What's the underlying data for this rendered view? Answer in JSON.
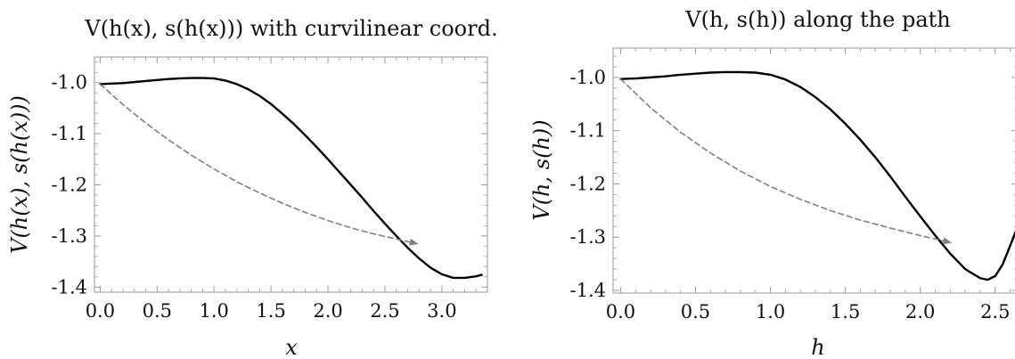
{
  "chart_data": [
    {
      "type": "line",
      "title": "V(h(x), s(h(x))) with curvilinear coord.",
      "xlabel": "x",
      "ylabel": "V(h(x), s(h(x)))",
      "xlim": [
        -0.05,
        3.4
      ],
      "ylim": [
        -1.41,
        -0.95
      ],
      "xticks": [
        0.0,
        0.5,
        1.0,
        1.5,
        2.0,
        2.5,
        3.0
      ],
      "xtick_labels": [
        "0.0",
        "0.5",
        "1.0",
        "1.5",
        "2.0",
        "2.5",
        "3.0"
      ],
      "yticks": [
        -1.0,
        -1.1,
        -1.2,
        -1.3,
        -1.4
      ],
      "ytick_labels": [
        "-1.0",
        "-1.1",
        "-1.2",
        "-1.3",
        "-1.4"
      ],
      "grid": false,
      "series": [
        {
          "style": "solid",
          "color": "#000000",
          "x": [
            0.0,
            0.1,
            0.2,
            0.3,
            0.4,
            0.5,
            0.6,
            0.7,
            0.8,
            0.9,
            1.0,
            1.1,
            1.2,
            1.3,
            1.4,
            1.5,
            1.6,
            1.7,
            1.8,
            1.9,
            2.0,
            2.1,
            2.2,
            2.3,
            2.4,
            2.5,
            2.6,
            2.7,
            2.8,
            2.9,
            3.0,
            3.1,
            3.2,
            3.3,
            3.35
          ],
          "y": [
            -1.003,
            -1.002,
            -1.001,
            -0.999,
            -0.997,
            -0.995,
            -0.993,
            -0.992,
            -0.991,
            -0.991,
            -0.992,
            -0.996,
            -1.003,
            -1.013,
            -1.026,
            -1.042,
            -1.061,
            -1.081,
            -1.103,
            -1.126,
            -1.15,
            -1.175,
            -1.2,
            -1.225,
            -1.251,
            -1.276,
            -1.3,
            -1.323,
            -1.344,
            -1.362,
            -1.375,
            -1.382,
            -1.382,
            -1.379,
            -1.376
          ]
        },
        {
          "style": "dashed",
          "color": "#808080",
          "arrow": true,
          "x": [
            0.0,
            0.2,
            0.4,
            0.6,
            0.8,
            1.0,
            1.2,
            1.4,
            1.6,
            1.8,
            2.0,
            2.2,
            2.4,
            2.6,
            2.78
          ],
          "y": [
            -1.003,
            -1.043,
            -1.079,
            -1.112,
            -1.142,
            -1.169,
            -1.194,
            -1.216,
            -1.236,
            -1.254,
            -1.27,
            -1.284,
            -1.296,
            -1.306,
            -1.315
          ]
        }
      ]
    },
    {
      "type": "line",
      "title": "V(h, s(h)) along the path",
      "xlabel": "h",
      "ylabel": "V(h, s(h))",
      "xlim": [
        -0.05,
        2.65
      ],
      "ylim": [
        -1.405,
        -0.945
      ],
      "xticks": [
        0.0,
        0.5,
        1.0,
        1.5,
        2.0,
        2.5
      ],
      "xtick_labels": [
        "0.0",
        "0.5",
        "1.0",
        "1.5",
        "2.0",
        "2.5"
      ],
      "yticks": [
        -1.0,
        -1.1,
        -1.2,
        -1.3,
        -1.4
      ],
      "ytick_labels": [
        "-1.0",
        "-1.1",
        "-1.2",
        "-1.3",
        "-1.4"
      ],
      "grid": false,
      "series": [
        {
          "style": "solid",
          "color": "#000000",
          "x": [
            0.0,
            0.1,
            0.2,
            0.3,
            0.4,
            0.5,
            0.6,
            0.7,
            0.8,
            0.9,
            1.0,
            1.1,
            1.2,
            1.3,
            1.4,
            1.5,
            1.6,
            1.7,
            1.8,
            1.9,
            2.0,
            2.1,
            2.2,
            2.3,
            2.4,
            2.45,
            2.5,
            2.55,
            2.6,
            2.65
          ],
          "y": [
            -1.003,
            -1.002,
            -1.0,
            -0.998,
            -0.995,
            -0.993,
            -0.991,
            -0.99,
            -0.99,
            -0.991,
            -0.995,
            -1.004,
            -1.018,
            -1.037,
            -1.06,
            -1.087,
            -1.117,
            -1.15,
            -1.186,
            -1.224,
            -1.261,
            -1.297,
            -1.331,
            -1.36,
            -1.377,
            -1.38,
            -1.373,
            -1.351,
            -1.316,
            -1.28
          ]
        },
        {
          "style": "dashed",
          "color": "#808080",
          "arrow": true,
          "x": [
            0.0,
            0.2,
            0.4,
            0.6,
            0.8,
            1.0,
            1.2,
            1.4,
            1.6,
            1.8,
            2.0,
            2.2
          ],
          "y": [
            -1.003,
            -1.057,
            -1.103,
            -1.142,
            -1.176,
            -1.205,
            -1.229,
            -1.25,
            -1.268,
            -1.283,
            -1.297,
            -1.31
          ]
        }
      ]
    }
  ]
}
